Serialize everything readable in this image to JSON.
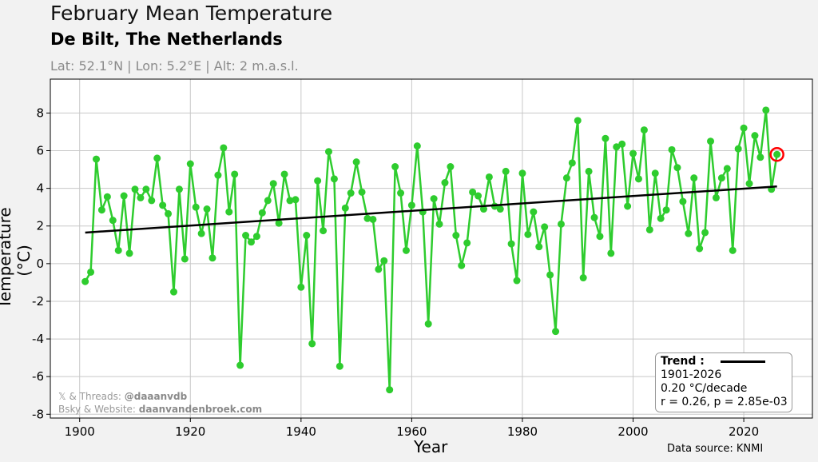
{
  "header": {
    "title": "February Mean Temperature",
    "subtitle": "De Bilt, The Netherlands",
    "meta": "Lat: 52.1°N | Lon: 5.2°E | Alt: 2 m.a.s.l."
  },
  "credits": {
    "line1_prefix": "𝕏 & Threads: ",
    "line1_handle": "@daaanvdb",
    "line2_prefix": "Bsky & Website: ",
    "line2_handle": "daanvandenbroek.com"
  },
  "source": "Data source: KNMI",
  "legend": {
    "title": "Trend :",
    "period": "1901-2026",
    "rate": "0.20 °C/decade",
    "stats": "r = 0.26, p = 2.85e-03"
  },
  "chart_data": {
    "type": "line",
    "title": "February Mean Temperature",
    "xlabel": "Year",
    "ylabel": "Temperature (°C)",
    "xlim": [
      1894.7,
      2032.4
    ],
    "ylim": [
      -8.2,
      9.8
    ],
    "xticks": [
      1900,
      1920,
      1940,
      1960,
      1980,
      2000,
      2020
    ],
    "yticks": [
      -8,
      -6,
      -4,
      -2,
      0,
      2,
      4,
      6,
      8
    ],
    "grid": true,
    "legend_position": "bottom-right",
    "colors": {
      "series": "#2ecc2e",
      "trend": "#000000",
      "highlight": "#ff0000"
    },
    "x_start": 1901,
    "values": [
      -0.95,
      -0.45,
      5.55,
      2.85,
      3.55,
      2.3,
      0.7,
      3.6,
      0.55,
      3.95,
      3.5,
      3.95,
      3.35,
      5.6,
      3.1,
      2.65,
      -1.5,
      3.95,
      0.25,
      5.3,
      3.0,
      1.6,
      2.9,
      0.3,
      4.7,
      6.15,
      2.75,
      4.75,
      -5.4,
      1.5,
      1.15,
      1.45,
      2.7,
      3.35,
      4.25,
      2.15,
      4.75,
      3.35,
      3.4,
      -1.25,
      1.5,
      -4.25,
      4.4,
      1.75,
      5.95,
      4.5,
      -5.45,
      2.95,
      3.75,
      5.4,
      3.8,
      2.4,
      2.35,
      -0.3,
      0.15,
      -6.7,
      5.15,
      3.75,
      0.7,
      3.1,
      6.25,
      2.75,
      -3.2,
      3.45,
      2.1,
      4.3,
      5.15,
      1.5,
      -0.1,
      1.1,
      3.8,
      3.6,
      2.9,
      4.6,
      3.05,
      2.9,
      4.9,
      1.05,
      -0.9,
      4.8,
      1.55,
      2.75,
      0.9,
      1.95,
      -0.6,
      -3.6,
      2.1,
      4.55,
      5.35,
      7.6,
      -0.75,
      4.9,
      2.45,
      1.45,
      6.65,
      0.55,
      6.2,
      6.35,
      3.05,
      5.85,
      4.5,
      7.1,
      1.8,
      4.8,
      2.4,
      2.85,
      6.05,
      5.1,
      3.3,
      1.6,
      4.55,
      0.8,
      1.65,
      6.5,
      3.5,
      4.55,
      5.05,
      0.7,
      6.1,
      7.2,
      4.25,
      6.8,
      5.65,
      8.15,
      3.95,
      5.8
    ],
    "trend": {
      "x": [
        1901,
        2026
      ],
      "y": [
        1.65,
        4.1
      ]
    },
    "highlight_year": 2026
  }
}
